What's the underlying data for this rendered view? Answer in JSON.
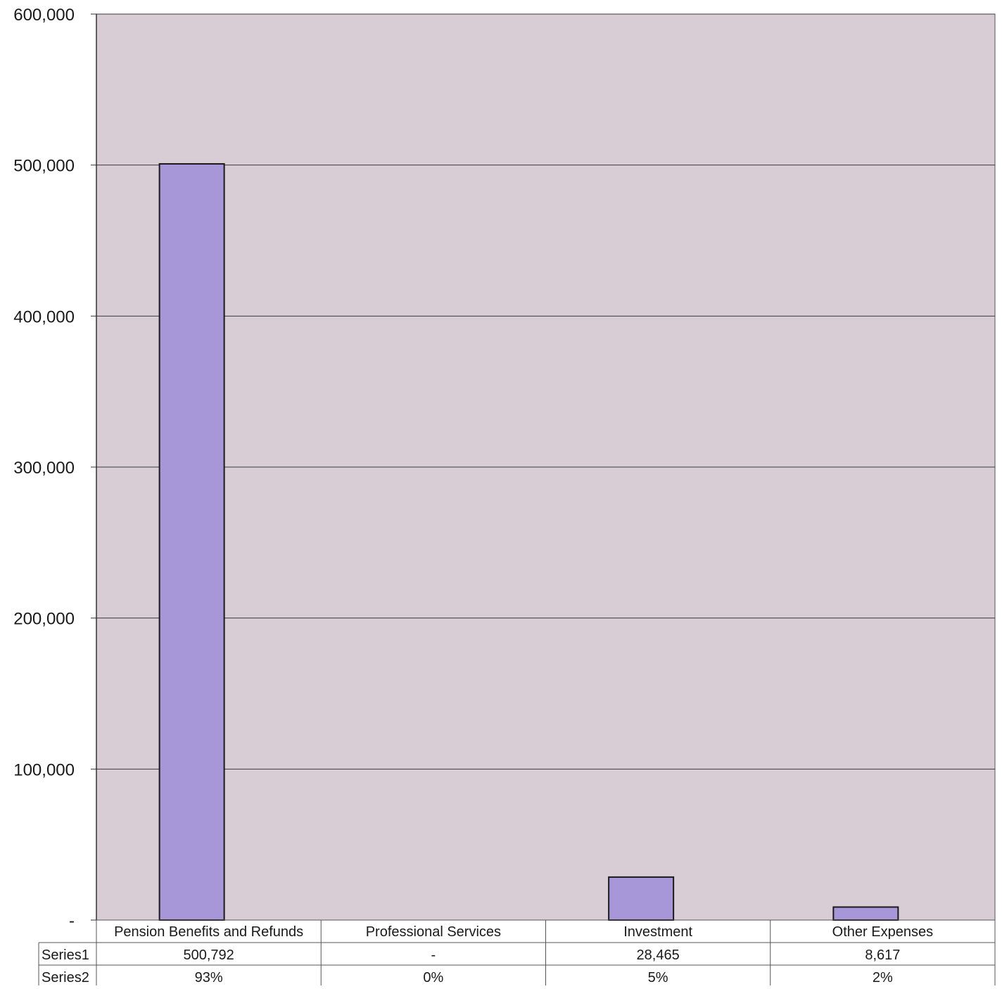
{
  "chart_data": {
    "type": "bar",
    "title": "",
    "xlabel": "",
    "ylabel": "",
    "categories": [
      "Pension Benefits and Refunds",
      "Professional Services",
      "Investment",
      "Other Expenses"
    ],
    "series": [
      {
        "name": "Series1",
        "values": [
          500792,
          0,
          28465,
          8617
        ]
      },
      {
        "name": "Series2",
        "values": [
          0.93,
          0.0,
          0.05,
          0.02
        ]
      }
    ],
    "plotted_series": "Series1",
    "ylim": [
      0,
      600000
    ],
    "yticks": [
      0,
      100000,
      200000,
      300000,
      400000,
      500000,
      600000
    ],
    "ytick_labels": [
      "-",
      "100,000",
      "200,000",
      "300,000",
      "400,000",
      "500,000",
      "600,000"
    ],
    "grid": true,
    "legend": "none",
    "data_table": {
      "row_labels": [
        "Series1",
        "Series2"
      ],
      "rows": [
        [
          "500,792",
          "-",
          "28,465",
          "8,617"
        ],
        [
          "93%",
          "0%",
          "5%",
          "2%"
        ]
      ]
    },
    "colors": {
      "bar_fill": "#a797d8",
      "bar_stroke": "#1a1a1a",
      "plot_background": "#d8cdd4",
      "gridline": "#3a3a3a"
    }
  }
}
